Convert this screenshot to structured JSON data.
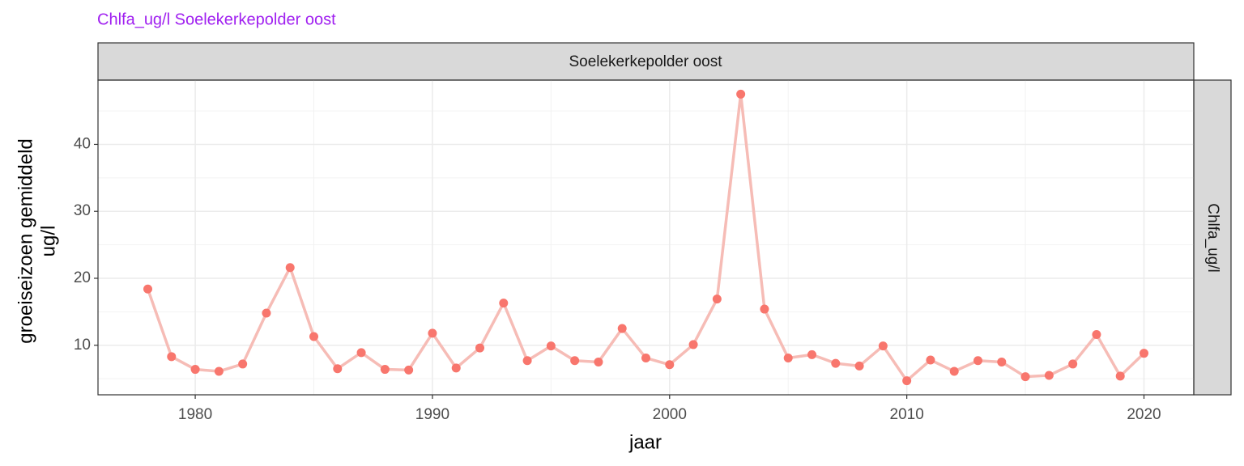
{
  "chart_data": {
    "type": "line",
    "title": "Chlfa_ug/l Soelekerkepolder oost",
    "facet_column": "Soelekerkepolder oost",
    "facet_row": "Chlfa_ug/l",
    "x_label": "jaar",
    "y_label": [
      "groeiseizoen gemiddeld",
      "ug/l"
    ],
    "x": [
      1978,
      1979,
      1980,
      1981,
      1982,
      1983,
      1984,
      1985,
      1986,
      1987,
      1988,
      1989,
      1990,
      1991,
      1992,
      1993,
      1994,
      1995,
      1996,
      1997,
      1998,
      1999,
      2000,
      2001,
      2002,
      2003,
      2004,
      2005,
      2006,
      2007,
      2008,
      2009,
      2010,
      2011,
      2012,
      2013,
      2014,
      2015,
      2016,
      2017,
      2018,
      2019,
      2020
    ],
    "series": [
      {
        "color": "#f8766d",
        "line_color": "#f6bcb6",
        "values": [
          18.4,
          8.3,
          6.4,
          6.1,
          7.2,
          14.8,
          21.6,
          11.3,
          6.5,
          8.9,
          6.4,
          6.3,
          11.8,
          6.6,
          9.6,
          16.3,
          7.7,
          9.9,
          7.7,
          7.5,
          12.5,
          8.1,
          7.1,
          10.1,
          16.9,
          47.5,
          15.4,
          8.1,
          8.6,
          7.3,
          6.9,
          9.9,
          4.7,
          7.8,
          6.1,
          7.7,
          7.5,
          5.3,
          5.5,
          7.2,
          11.6,
          5.4,
          8.8
        ]
      }
    ],
    "xlim": [
      1975.9,
      2022.1
    ],
    "xticks": [
      1980,
      1990,
      2000,
      2010,
      2020
    ],
    "ylim": [
      2.6,
      49.6
    ],
    "yticks": [
      10,
      20,
      30,
      40
    ],
    "grid": true
  }
}
